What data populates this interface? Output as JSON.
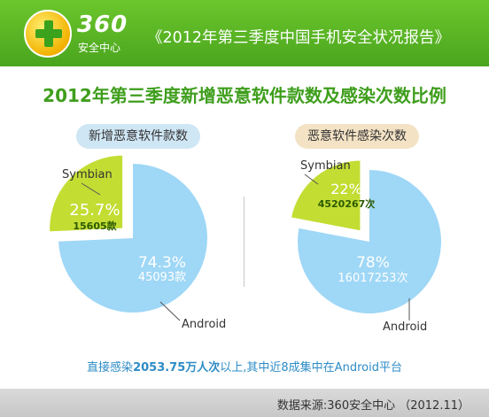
{
  "header": {
    "brand_number": "360",
    "brand_name": "安全中心",
    "report_title": "《2012年第三季度中国手机安全状况报告》"
  },
  "main_title": "2012年第三季度新增恶意软件款数及感染次数比例",
  "footer": {
    "line_prefix": "直接感染",
    "line_value": "2053.75万人次",
    "line_suffix": "以上,其中近8成集中在Android平台",
    "source": "数据来源:360安全中心 （2012.11）"
  },
  "colors": {
    "header_green": "#5cb827",
    "android": "#9fd7f6",
    "symbian": "#c3dd33",
    "title_green": "#3f9e1d",
    "footer_blue": "#2d8cc6"
  },
  "chart_data": [
    {
      "type": "pie",
      "title": "新增恶意软件款数",
      "slices": [
        {
          "label": "Android",
          "percent_label": "74.3%",
          "count_label": "45093款",
          "value": 74.3
        },
        {
          "label": "Symbian",
          "percent_label": "25.7%",
          "count_label": "15605款",
          "value": 25.7
        }
      ]
    },
    {
      "type": "pie",
      "title": "恶意软件感染次数",
      "slices": [
        {
          "label": "Android",
          "percent_label": "78%",
          "count_label": "16017253次",
          "value": 78
        },
        {
          "label": "Symbian",
          "percent_label": "22%",
          "count_label": "4520267次",
          "value": 22
        }
      ]
    }
  ]
}
